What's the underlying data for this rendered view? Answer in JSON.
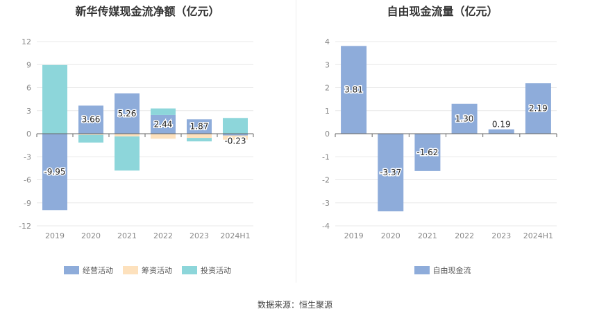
{
  "colors": {
    "operating": "#8eacda",
    "financing": "#fde1bd",
    "investing": "#8dd6da",
    "free": "#8eacda",
    "grid": "#e8e8e8",
    "axis": "#666666",
    "tick": "#888888"
  },
  "source_text": "数据来源：恒生聚源",
  "chart_data": [
    {
      "type": "bar",
      "stacked": true,
      "title": "新华传媒现金流净额（亿元）",
      "categories": [
        "2019",
        "2020",
        "2021",
        "2022",
        "2023",
        "2024H1"
      ],
      "ylim": [
        -12,
        12
      ],
      "yticks": [
        12,
        9,
        6,
        3,
        0,
        -3,
        -6,
        -9,
        -12
      ],
      "legend_position": "bottom",
      "series": [
        {
          "name": "经营活动",
          "key": "operating",
          "values": [
            -9.95,
            3.66,
            5.26,
            2.44,
            1.87,
            -0.23
          ]
        },
        {
          "name": "筹资活动",
          "key": "financing",
          "values": [
            0,
            -0.15,
            -0.35,
            -0.65,
            -0.55,
            -0.55
          ]
        },
        {
          "name": "投资活动",
          "key": "investing",
          "values": [
            8.95,
            -1.0,
            -4.45,
            0.85,
            -0.45,
            2.05
          ]
        }
      ],
      "data_labels": [
        "-9.95",
        "3.66",
        "5.26",
        "2.44",
        "1.87",
        "-0.23"
      ]
    },
    {
      "type": "bar",
      "title": "自由现金流量（亿元）",
      "categories": [
        "2019",
        "2020",
        "2021",
        "2022",
        "2023",
        "2024H1"
      ],
      "ylim": [
        -4,
        4
      ],
      "yticks": [
        4,
        3,
        2,
        1,
        0,
        -1,
        -2,
        -3,
        -4
      ],
      "legend_position": "bottom",
      "series": [
        {
          "name": "自由现金流",
          "key": "free",
          "values": [
            3.81,
            -3.37,
            -1.62,
            1.3,
            0.19,
            2.19
          ]
        }
      ],
      "data_labels": [
        "3.81",
        "-3.37",
        "-1.62",
        "1.30",
        "0.19",
        "2.19"
      ]
    }
  ]
}
